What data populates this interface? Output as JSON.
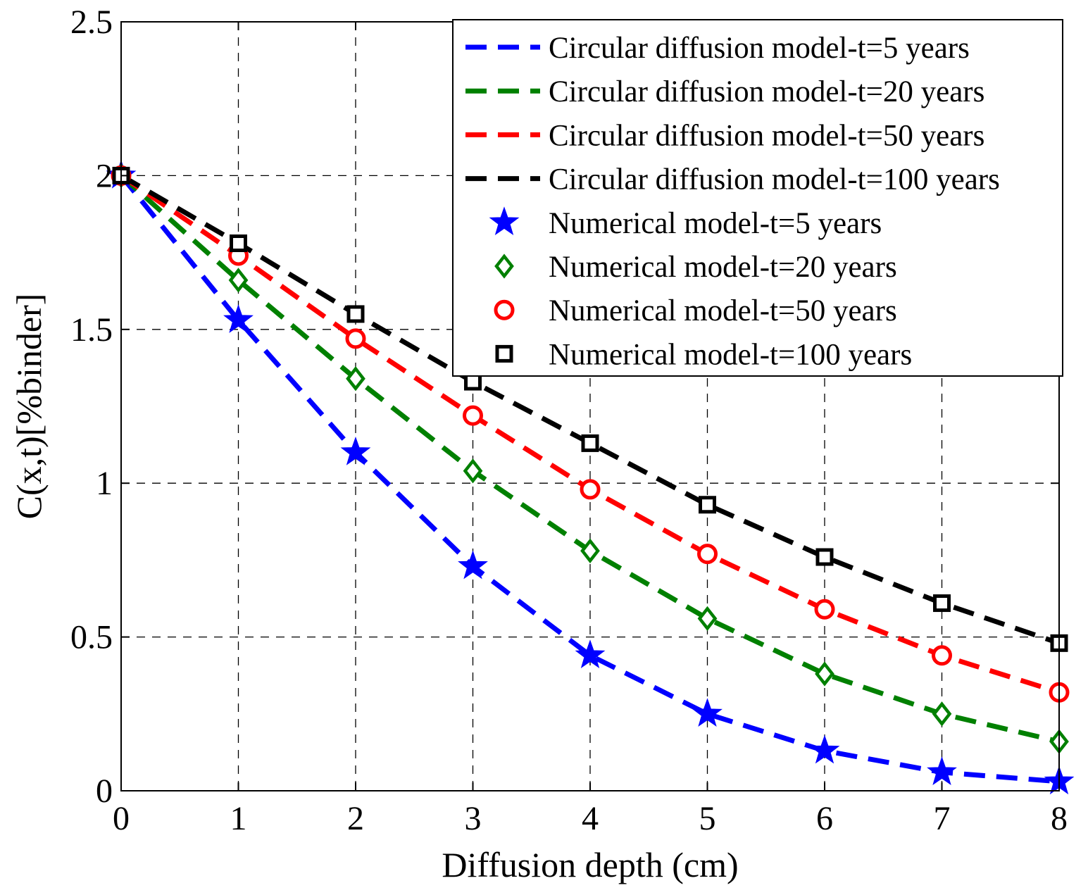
{
  "chart_data": {
    "type": "line",
    "title": "",
    "xlabel": "Diffusion depth (cm)",
    "ylabel": "C(x,t)[%binder]",
    "xlim": [
      0,
      8
    ],
    "ylim": [
      0,
      2.5
    ],
    "xticks": [
      0,
      1,
      2,
      3,
      4,
      5,
      6,
      7,
      8
    ],
    "xtick_labels": [
      "0",
      "1",
      "2",
      "3",
      "4",
      "5",
      "6",
      "7",
      "8"
    ],
    "yticks": [
      0,
      0.5,
      1,
      1.5,
      2,
      2.5
    ],
    "ytick_labels": [
      "0",
      "0.5",
      "1",
      "1.5",
      "2",
      "2.5"
    ],
    "grid": true,
    "legend_position": "top-right",
    "x": [
      0,
      1,
      2,
      3,
      4,
      5,
      6,
      7,
      8
    ],
    "series": [
      {
        "name": "Circular diffusion model-t=5 years",
        "style": "dashed",
        "color": "#0000ff",
        "values": [
          2.0,
          1.53,
          1.1,
          0.73,
          0.44,
          0.25,
          0.13,
          0.06,
          0.03
        ]
      },
      {
        "name": "Circular diffusion model-t=20 years",
        "style": "dashed",
        "color": "#008000",
        "values": [
          2.0,
          1.66,
          1.34,
          1.04,
          0.78,
          0.56,
          0.38,
          0.25,
          0.16
        ]
      },
      {
        "name": "Circular diffusion model-t=50 years",
        "style": "dashed",
        "color": "#ff0000",
        "values": [
          2.0,
          1.74,
          1.47,
          1.22,
          0.98,
          0.77,
          0.59,
          0.44,
          0.32
        ]
      },
      {
        "name": "Circular diffusion model-t=100 years",
        "style": "dashed",
        "color": "#000000",
        "values": [
          2.0,
          1.78,
          1.55,
          1.33,
          1.13,
          0.93,
          0.76,
          0.61,
          0.48
        ]
      },
      {
        "name": "Numerical model-t=5 years",
        "style": "marker",
        "marker": "star",
        "color": "#0000ff",
        "values": [
          2.0,
          1.53,
          1.1,
          0.73,
          0.44,
          0.25,
          0.13,
          0.06,
          0.03
        ]
      },
      {
        "name": "Numerical model-t=20 years",
        "style": "marker",
        "marker": "diamond",
        "color": "#008000",
        "values": [
          2.0,
          1.66,
          1.34,
          1.04,
          0.78,
          0.56,
          0.38,
          0.25,
          0.16
        ]
      },
      {
        "name": "Numerical model-t=50 years",
        "style": "marker",
        "marker": "circle",
        "color": "#ff0000",
        "values": [
          2.0,
          1.74,
          1.47,
          1.22,
          0.98,
          0.77,
          0.59,
          0.44,
          0.32
        ]
      },
      {
        "name": "Numerical model-t=100 years",
        "style": "marker",
        "marker": "square",
        "color": "#000000",
        "values": [
          2.0,
          1.78,
          1.55,
          1.33,
          1.13,
          0.93,
          0.76,
          0.61,
          0.48
        ]
      }
    ]
  }
}
